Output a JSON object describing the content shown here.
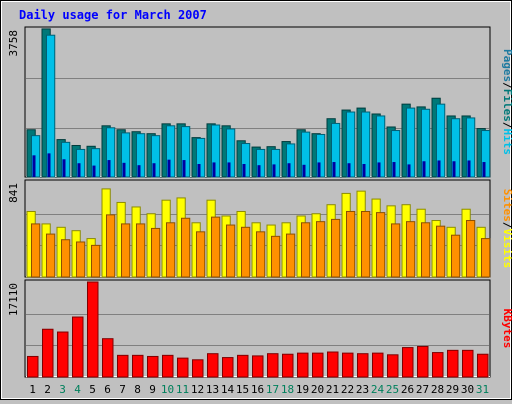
{
  "chart_data": {
    "type": "bar",
    "title": "Daily usage for March 2007",
    "categories": [
      "1",
      "2",
      "3",
      "4",
      "5",
      "6",
      "7",
      "8",
      "9",
      "10",
      "11",
      "12",
      "13",
      "14",
      "15",
      "16",
      "17",
      "18",
      "19",
      "20",
      "21",
      "22",
      "23",
      "24",
      "25",
      "26",
      "27",
      "28",
      "29",
      "30",
      "31"
    ],
    "weekend_days": [
      "3",
      "4",
      "10",
      "11",
      "17",
      "18",
      "24",
      "25",
      "31"
    ],
    "panels": [
      {
        "id": "top",
        "ymax": 3758,
        "tick_label": "3758",
        "legend": [
          "Pages",
          "/",
          "Files",
          "/",
          "Hits"
        ],
        "series": [
          {
            "name": "Pages",
            "color": "#1E7AA0",
            "values": [
              550,
              600,
              450,
              350,
              290,
              430,
              360,
              300,
              350,
              440,
              430,
              330,
              370,
              370,
              330,
              300,
              320,
              350,
              310,
              370,
              380,
              350,
              330,
              370,
              380,
              320,
              400,
              420,
              400,
              420,
              380
            ]
          },
          {
            "name": "Files",
            "color": "#007878",
            "values": [
              1200,
              3760,
              950,
              800,
              780,
              1300,
              1200,
              1150,
              1100,
              1350,
              1350,
              1000,
              1350,
              1300,
              920,
              760,
              770,
              900,
              1200,
              1100,
              1480,
              1700,
              1750,
              1600,
              1270,
              1850,
              1780,
              2000,
              1550,
              1550,
              1230
            ]
          },
          {
            "name": "Hits",
            "color": "#00C0E8",
            "values": [
              1050,
              3600,
              880,
              700,
              720,
              1250,
              1120,
              1100,
              1050,
              1300,
              1280,
              980,
              1320,
              1220,
              850,
              700,
              700,
              840,
              1140,
              1080,
              1360,
              1650,
              1650,
              1550,
              1180,
              1750,
              1720,
              1850,
              1480,
              1500,
              1180
            ]
          }
        ]
      },
      {
        "id": "middle",
        "ymax": 841,
        "tick_label": "841",
        "legend": [
          "Sites",
          "/",
          "Visits"
        ],
        "series": [
          {
            "name": "Visits",
            "color": "#FFFF00",
            "values": [
              580,
              470,
              440,
              410,
              340,
              780,
              660,
              620,
              560,
              680,
              700,
              480,
              680,
              540,
              580,
              480,
              460,
              480,
              540,
              560,
              640,
              740,
              760,
              690,
              630,
              640,
              600,
              500,
              440,
              600,
              440
            ]
          },
          {
            "name": "Sites",
            "color": "#FF9000",
            "values": [
              470,
              380,
              330,
              310,
              280,
              550,
              470,
              470,
              430,
              480,
              520,
              400,
              530,
              460,
              440,
              400,
              360,
              380,
              480,
              490,
              510,
              580,
              580,
              570,
              470,
              490,
              480,
              450,
              370,
              500,
              340
            ]
          }
        ]
      },
      {
        "id": "bottom",
        "ymax": 17110,
        "tick_label": "17110",
        "legend": [
          "KBytes"
        ],
        "series": [
          {
            "name": "KBytes",
            "color": "#FF0000",
            "values": [
              3700,
              8600,
              8100,
              10800,
              17110,
              6900,
              3900,
              3900,
              3700,
              3900,
              3400,
              3100,
              4200,
              3500,
              3900,
              3800,
              4200,
              4100,
              4300,
              4300,
              4500,
              4300,
              4200,
              4300,
              4000,
              5300,
              5500,
              4400,
              4800,
              4800,
              4100
            ]
          }
        ]
      }
    ],
    "colors": {
      "title": "#0000FF",
      "weekday_label": "#000000",
      "weekend_label": "#00805C",
      "legend_separator": "#000000",
      "background": "#C0C0C0",
      "gridline": "#808080"
    },
    "grid": true
  }
}
